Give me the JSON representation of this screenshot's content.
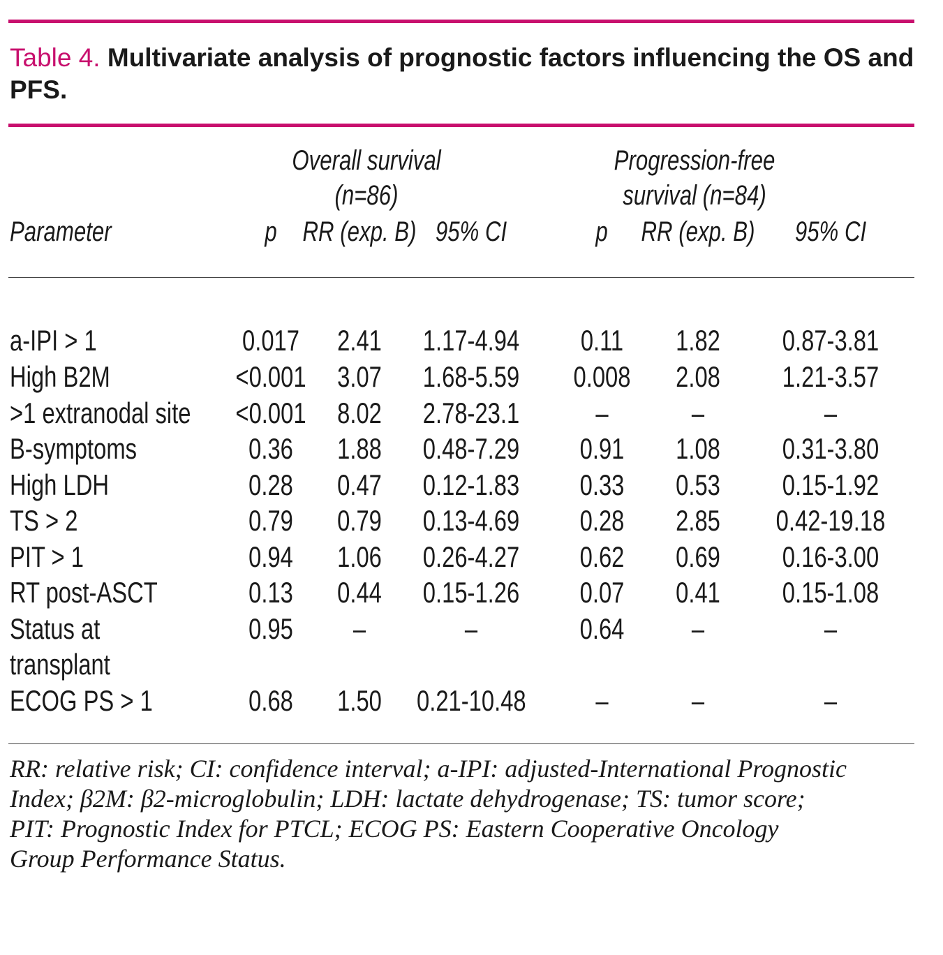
{
  "caption": {
    "label": "Table 4.",
    "title": "Multivariate analysis of prognostic factors influencing the OS and PFS."
  },
  "header": {
    "os_group_line1": "Overall survival",
    "os_group_line2": "(n=86)",
    "pfs_group_line1": "Progression-free",
    "pfs_group_line2": "survival (n=84)",
    "parameter": "Parameter",
    "os_p": "p",
    "os_rr": "RR (exp. B)",
    "os_ci": "95% CI",
    "pfs_p": "p",
    "pfs_rr": "RR (exp. B)",
    "pfs_ci": "95% CI"
  },
  "rows": [
    {
      "param": "a-IPI > 1",
      "os_p": "0.017",
      "os_rr": "2.41",
      "os_ci": "1.17-4.94",
      "pfs_p": "0.11",
      "pfs_rr": "1.82",
      "pfs_ci": "0.87-3.81"
    },
    {
      "param": "High B2M",
      "os_p": "<0.001",
      "os_rr": "3.07",
      "os_ci": "1.68-5.59",
      "pfs_p": "0.008",
      "pfs_rr": "2.08",
      "pfs_ci": "1.21-3.57"
    },
    {
      "param": ">1 extranodal site",
      "os_p": "<0.001",
      "os_rr": "8.02",
      "os_ci": "2.78-23.1",
      "pfs_p": "–",
      "pfs_rr": "–",
      "pfs_ci": "–"
    },
    {
      "param": "B-symptoms",
      "os_p": "0.36",
      "os_rr": "1.88",
      "os_ci": "0.48-7.29",
      "pfs_p": "0.91",
      "pfs_rr": "1.08",
      "pfs_ci": "0.31-3.80"
    },
    {
      "param": "High LDH",
      "os_p": "0.28",
      "os_rr": "0.47",
      "os_ci": "0.12-1.83",
      "pfs_p": "0.33",
      "pfs_rr": "0.53",
      "pfs_ci": "0.15-1.92"
    },
    {
      "param": "TS > 2",
      "os_p": "0.79",
      "os_rr": "0.79",
      "os_ci": "0.13-4.69",
      "pfs_p": "0.28",
      "pfs_rr": "2.85",
      "pfs_ci": "0.42-19.18"
    },
    {
      "param": "PIT > 1",
      "os_p": "0.94",
      "os_rr": "1.06",
      "os_ci": "0.26-4.27",
      "pfs_p": "0.62",
      "pfs_rr": "0.69",
      "pfs_ci": "0.16-3.00"
    },
    {
      "param": "RT post-ASCT",
      "os_p": "0.13",
      "os_rr": "0.44",
      "os_ci": "0.15-1.26",
      "pfs_p": "0.07",
      "pfs_rr": "0.41",
      "pfs_ci": "0.15-1.08"
    },
    {
      "param": "Status at",
      "param2": "transplant",
      "os_p": "0.95",
      "os_rr": "–",
      "os_ci": "–",
      "pfs_p": "0.64",
      "pfs_rr": "–",
      "pfs_ci": "–"
    },
    {
      "param": "ECOG PS > 1",
      "os_p": "0.68",
      "os_rr": "1.50",
      "os_ci": "0.21-10.48",
      "pfs_p": "–",
      "pfs_rr": "–",
      "pfs_ci": "–"
    }
  ],
  "footnote": "RR: relative risk; CI: confidence interval; a-IPI: adjusted-International Prognostic Index; β2M: β2-microglobulin; LDH: lactate dehydrogenase; TS: tumor score; PIT: Prognostic Index for PTCL; ECOG PS: Eastern Cooperative Oncology Group Performance Status.",
  "colors": {
    "accent": "#c8106e",
    "text": "#1a1a1a"
  }
}
